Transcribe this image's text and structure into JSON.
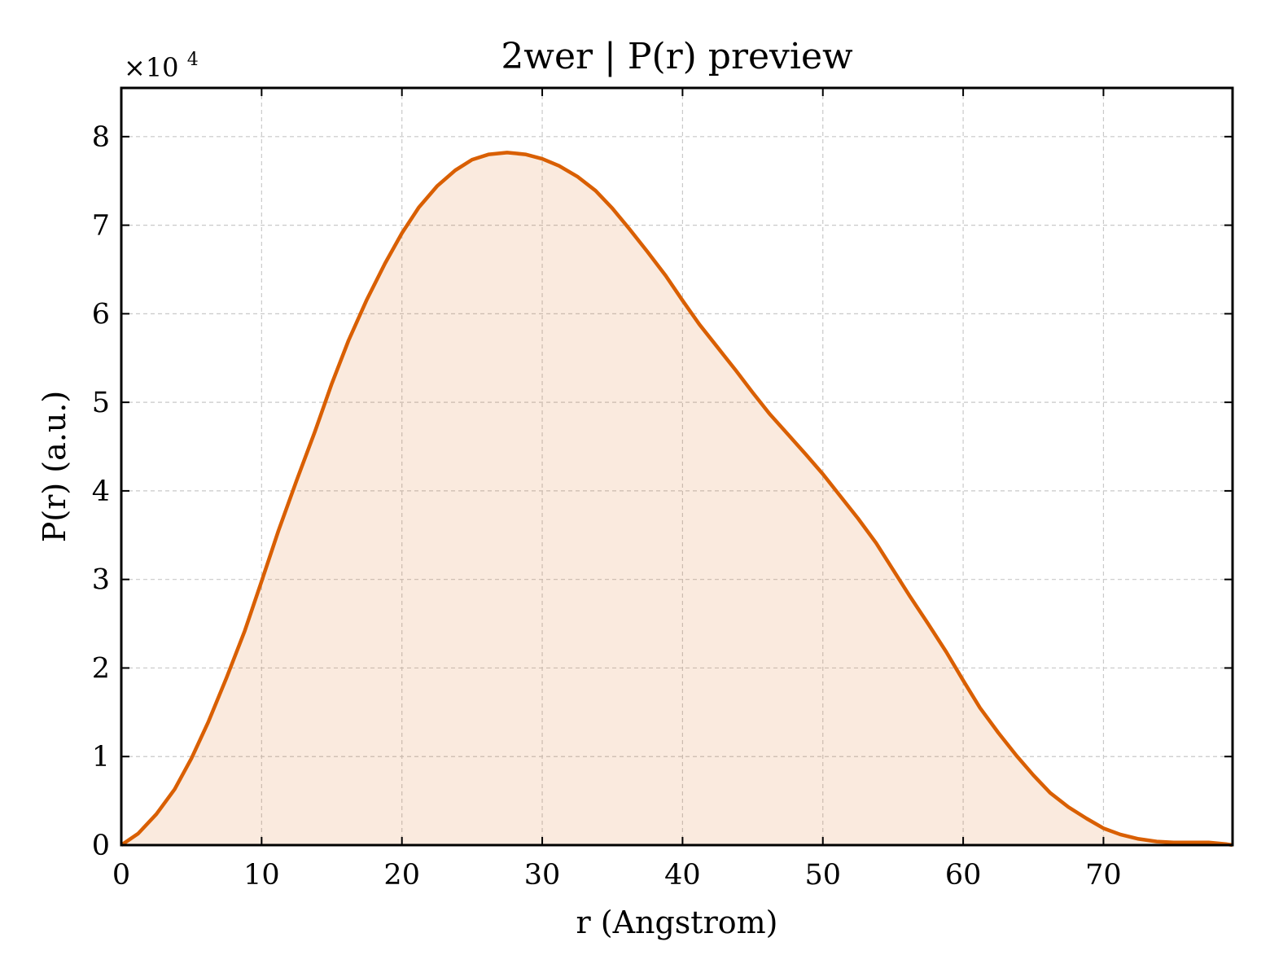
{
  "chart_data": {
    "type": "area",
    "title": "2wer | P(r) preview",
    "xlabel": "r (Angstrom)",
    "ylabel": "P(r) (a.u.)",
    "y_offset_label": {
      "base": "×10",
      "exponent": "4"
    },
    "xlim": [
      0,
      79.2
    ],
    "ylim": [
      0,
      85500
    ],
    "x_ticks": [
      0,
      10,
      20,
      30,
      40,
      50,
      60,
      70
    ],
    "x_tick_labels": [
      "0",
      "10",
      "20",
      "30",
      "40",
      "50",
      "60",
      "70"
    ],
    "y_ticks": [
      0,
      10000,
      20000,
      30000,
      40000,
      50000,
      60000,
      70000,
      80000
    ],
    "y_tick_labels": [
      "0",
      "1",
      "2",
      "3",
      "4",
      "5",
      "6",
      "7",
      "8"
    ],
    "grid": true,
    "colors": {
      "line": "#d95f02",
      "fill": "#d95f02",
      "fill_opacity": 0.13
    },
    "series": [
      {
        "x": [
          0,
          1.2,
          2.5,
          3.8,
          5.0,
          6.2,
          7.5,
          8.8,
          10,
          11.2,
          12.5,
          13.8,
          15,
          16.2,
          17.5,
          18.8,
          20,
          21.2,
          22.5,
          23.8,
          25,
          26.2,
          27.5,
          28.8,
          30,
          31.2,
          32.5,
          33.8,
          35,
          36.2,
          37.5,
          38.8,
          40,
          41.2,
          42.5,
          43.8,
          45,
          46.2,
          47.5,
          48.8,
          50,
          51.2,
          52.5,
          53.8,
          55,
          56.2,
          57.5,
          58.8,
          60,
          61.2,
          62.5,
          63.8,
          65,
          66.2,
          67.5,
          68.8,
          70,
          71.2,
          72.5,
          73.8,
          75,
          76.2,
          77.5,
          78.8,
          79.2
        ],
        "y": [
          0,
          1300,
          3500,
          6300,
          9800,
          13900,
          18900,
          24200,
          29800,
          35500,
          41200,
          46700,
          52100,
          57000,
          61600,
          65700,
          69100,
          72000,
          74400,
          76200,
          77400,
          78000,
          78200,
          78000,
          77500,
          76700,
          75500,
          73900,
          71900,
          69600,
          67000,
          64300,
          61500,
          58800,
          56200,
          53600,
          51100,
          48700,
          46400,
          44100,
          41900,
          39500,
          36900,
          34100,
          31100,
          28100,
          25000,
          21800,
          18600,
          15500,
          12700,
          10100,
          7900,
          5900,
          4300,
          3000,
          1900,
          1200,
          700,
          400,
          300,
          300,
          300,
          100,
          0
        ]
      }
    ]
  }
}
